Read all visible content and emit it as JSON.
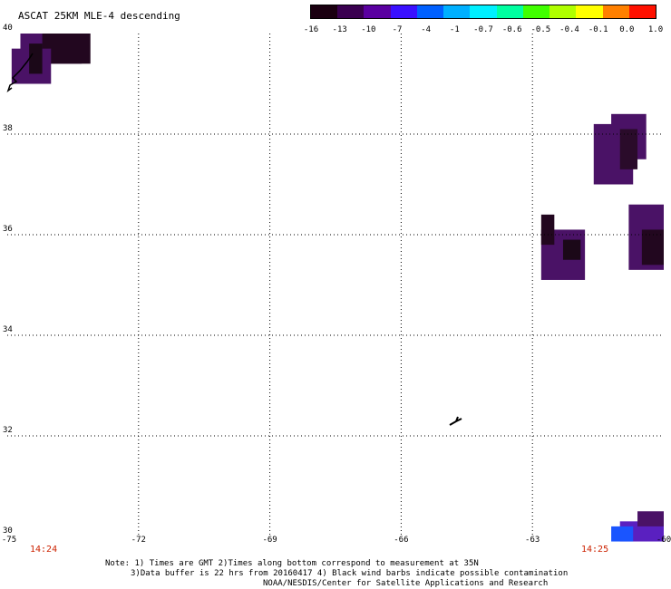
{
  "title": "ASCAT 25KM MLE-4 descending",
  "colorbar": {
    "labels": [
      "-16",
      "-13",
      "-10",
      "-7",
      "-4",
      "-1",
      "-0.7",
      "-0.6",
      "-0.5",
      "-0.4",
      "-0.1",
      "0.0",
      "1.0"
    ],
    "colors": [
      "#1a0010",
      "#3a0050",
      "#5a00a0",
      "#3a10ff",
      "#0060ff",
      "#00b0ff",
      "#00f0ff",
      "#00ffa0",
      "#40ff00",
      "#b0ff00",
      "#ffff00",
      "#ff8000",
      "#ff1000"
    ]
  },
  "y_axis": {
    "labels": [
      "40",
      "38",
      "36",
      "34",
      "32",
      "30"
    ],
    "values": [
      40,
      38,
      36,
      34,
      32,
      30
    ]
  },
  "x_axis": {
    "labels": [
      "-75",
      "-72",
      "-69",
      "-66",
      "-63",
      "-60"
    ],
    "values": [
      -75,
      -72,
      -69,
      -66,
      -63,
      -60
    ]
  },
  "times": {
    "left": "14:24",
    "right": "14:25"
  },
  "notes": {
    "line1": "Note: 1) Times are GMT 2)Times along bottom correspond to measurement at 35N",
    "line2": "3)Data buffer is 22 hrs from 20160417 4) Black wind barbs indicate possible contamination",
    "line3": "NOAA/NESDIS/Center for Satellite Applications and Research"
  },
  "swaths": [
    {
      "lon0": -74.7,
      "lon1": -73.3,
      "lat0": 39.4,
      "lat1": 40.0,
      "color": "#4a1266"
    },
    {
      "lon0": -74.2,
      "lon1": -73.1,
      "lat0": 39.4,
      "lat1": 40.0,
      "color": "#22071f"
    },
    {
      "lon0": -74.9,
      "lon1": -74.0,
      "lat0": 39.0,
      "lat1": 39.7,
      "color": "#4a1266"
    },
    {
      "lon0": -74.5,
      "lon1": -74.2,
      "lat0": 39.2,
      "lat1": 39.8,
      "color": "#1b0818"
    },
    {
      "lon0": -61.2,
      "lon1": -60.4,
      "lat0": 37.5,
      "lat1": 38.4,
      "color": "#4a1266"
    },
    {
      "lon0": -61.6,
      "lon1": -60.7,
      "lat0": 37.0,
      "lat1": 38.2,
      "color": "#4a1266"
    },
    {
      "lon0": -61.0,
      "lon1": -60.6,
      "lat0": 37.3,
      "lat1": 38.1,
      "color": "#2a0b2a"
    },
    {
      "lon0": -62.8,
      "lon1": -61.8,
      "lat0": 35.1,
      "lat1": 36.1,
      "color": "#4a1266"
    },
    {
      "lon0": -62.8,
      "lon1": -62.5,
      "lat0": 35.8,
      "lat1": 36.4,
      "color": "#22071f"
    },
    {
      "lon0": -62.3,
      "lon1": -61.9,
      "lat0": 35.5,
      "lat1": 35.9,
      "color": "#1b0818"
    },
    {
      "lon0": -60.8,
      "lon1": -60.0,
      "lat0": 35.3,
      "lat1": 36.6,
      "color": "#4a1266"
    },
    {
      "lon0": -60.5,
      "lon1": -60.0,
      "lat0": 35.4,
      "lat1": 36.1,
      "color": "#22071f"
    },
    {
      "lon0": -61.0,
      "lon1": -60.0,
      "lat0": 29.9,
      "lat1": 30.3,
      "color": "#5a20c0"
    },
    {
      "lon0": -61.2,
      "lon1": -60.7,
      "lat0": 29.9,
      "lat1": 30.2,
      "color": "#1a55ff"
    },
    {
      "lon0": -60.6,
      "lon1": -60.0,
      "lat0": 30.2,
      "lat1": 30.5,
      "color": "#4a1266"
    }
  ]
}
